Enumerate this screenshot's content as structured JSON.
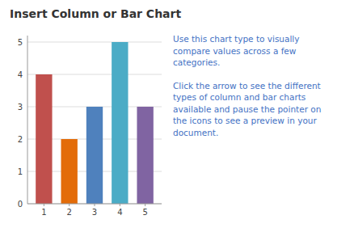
{
  "chart_data": {
    "type": "bar",
    "title": "Insert Column or Bar Chart",
    "x": [
      1,
      2,
      3,
      4,
      5
    ],
    "values": [
      4,
      2,
      3,
      5,
      3
    ],
    "colors": [
      "#C0504D",
      "#E36C09",
      "#4F81BD",
      "#4BACC6",
      "#8064A2"
    ],
    "xlim": [
      0.35,
      5.65
    ],
    "xticks": [
      1,
      2,
      3,
      4,
      5
    ],
    "ylim": [
      0,
      5.2
    ],
    "yticks": [
      0,
      1,
      2,
      3,
      4,
      5
    ],
    "grid": true,
    "annotations": [
      "Use this chart type to visually\ncompare values across a few\ncategories.",
      "Click the arrow to see the different\ntypes of column and bar charts\navailable and pause the pointer on\nthe icons to see a preview in your\ndocument."
    ]
  }
}
